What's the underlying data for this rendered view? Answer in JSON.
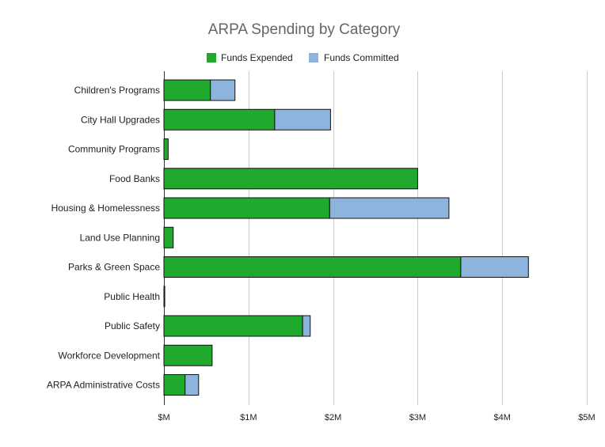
{
  "chart_data": {
    "type": "bar",
    "orientation": "horizontal",
    "stacked": true,
    "title": "ARPA Spending by Category",
    "xlabel": "",
    "ylabel": "",
    "xlim": [
      0,
      5
    ],
    "x_ticks": [
      {
        "value": 0,
        "label": "$M"
      },
      {
        "value": 1,
        "label": "$1M"
      },
      {
        "value": 2,
        "label": "$2M"
      },
      {
        "value": 3,
        "label": "$3M"
      },
      {
        "value": 4,
        "label": "$4M"
      },
      {
        "value": 5,
        "label": "$5M"
      }
    ],
    "grid": true,
    "legend_position": "top",
    "categories": [
      "Children's Programs",
      "City Hall Upgrades",
      "Community Programs",
      "Food Banks",
      "Housing & Homelessness",
      "Land Use Planning",
      "Parks & Green Space",
      "Public Health",
      "Public Safety",
      "Workforce Development",
      "ARPA Administrative Costs"
    ],
    "series": [
      {
        "name": "Funds Expended",
        "color": "#1faa2e",
        "values": [
          0.55,
          1.31,
          0.05,
          3.0,
          1.96,
          0.11,
          3.51,
          0.01,
          1.64,
          0.57,
          0.25
        ]
      },
      {
        "name": "Funds Committed",
        "color": "#8db4dc",
        "values": [
          0.29,
          0.66,
          0.0,
          0.0,
          1.41,
          0.0,
          0.8,
          0.0,
          0.09,
          0.0,
          0.16
        ]
      }
    ]
  }
}
